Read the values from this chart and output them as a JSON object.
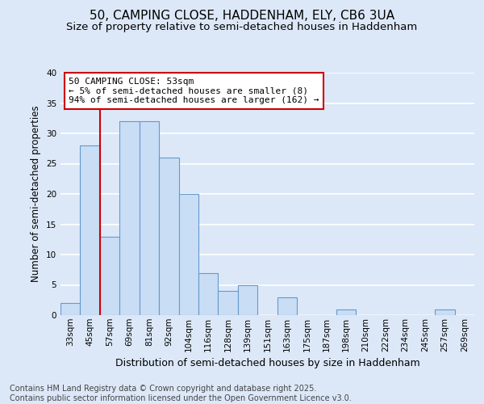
{
  "title1": "50, CAMPING CLOSE, HADDENHAM, ELY, CB6 3UA",
  "title2": "Size of property relative to semi-detached houses in Haddenham",
  "xlabel": "Distribution of semi-detached houses by size in Haddenham",
  "ylabel": "Number of semi-detached properties",
  "bar_labels": [
    "33sqm",
    "45sqm",
    "57sqm",
    "69sqm",
    "81sqm",
    "92sqm",
    "104sqm",
    "116sqm",
    "128sqm",
    "139sqm",
    "151sqm",
    "163sqm",
    "175sqm",
    "187sqm",
    "198sqm",
    "210sqm",
    "222sqm",
    "234sqm",
    "245sqm",
    "257sqm",
    "269sqm"
  ],
  "bar_values": [
    2,
    28,
    13,
    32,
    32,
    26,
    20,
    7,
    4,
    5,
    0,
    3,
    0,
    0,
    1,
    0,
    0,
    0,
    0,
    1,
    0
  ],
  "bar_color": "#c9ddf5",
  "bar_edge_color": "#6699cc",
  "annotation_box_color": "#ffffff",
  "annotation_box_edge": "#cc0000",
  "annotation_text": "50 CAMPING CLOSE: 53sqm\n← 5% of semi-detached houses are smaller (8)\n94% of semi-detached houses are larger (162) →",
  "vline_x": 1.5,
  "vline_color": "#cc0000",
  "ylim": [
    0,
    40
  ],
  "yticks": [
    0,
    5,
    10,
    15,
    20,
    25,
    30,
    35,
    40
  ],
  "fig_background_color": "#dce8f8",
  "plot_background_color": "#dce8f8",
  "grid_color": "#ffffff",
  "footer_text": "Contains HM Land Registry data © Crown copyright and database right 2025.\nContains public sector information licensed under the Open Government Licence v3.0.",
  "title1_fontsize": 11,
  "title2_fontsize": 9.5,
  "xlabel_fontsize": 9,
  "ylabel_fontsize": 8.5,
  "annotation_fontsize": 8,
  "footer_fontsize": 7,
  "tick_fontsize": 7.5
}
